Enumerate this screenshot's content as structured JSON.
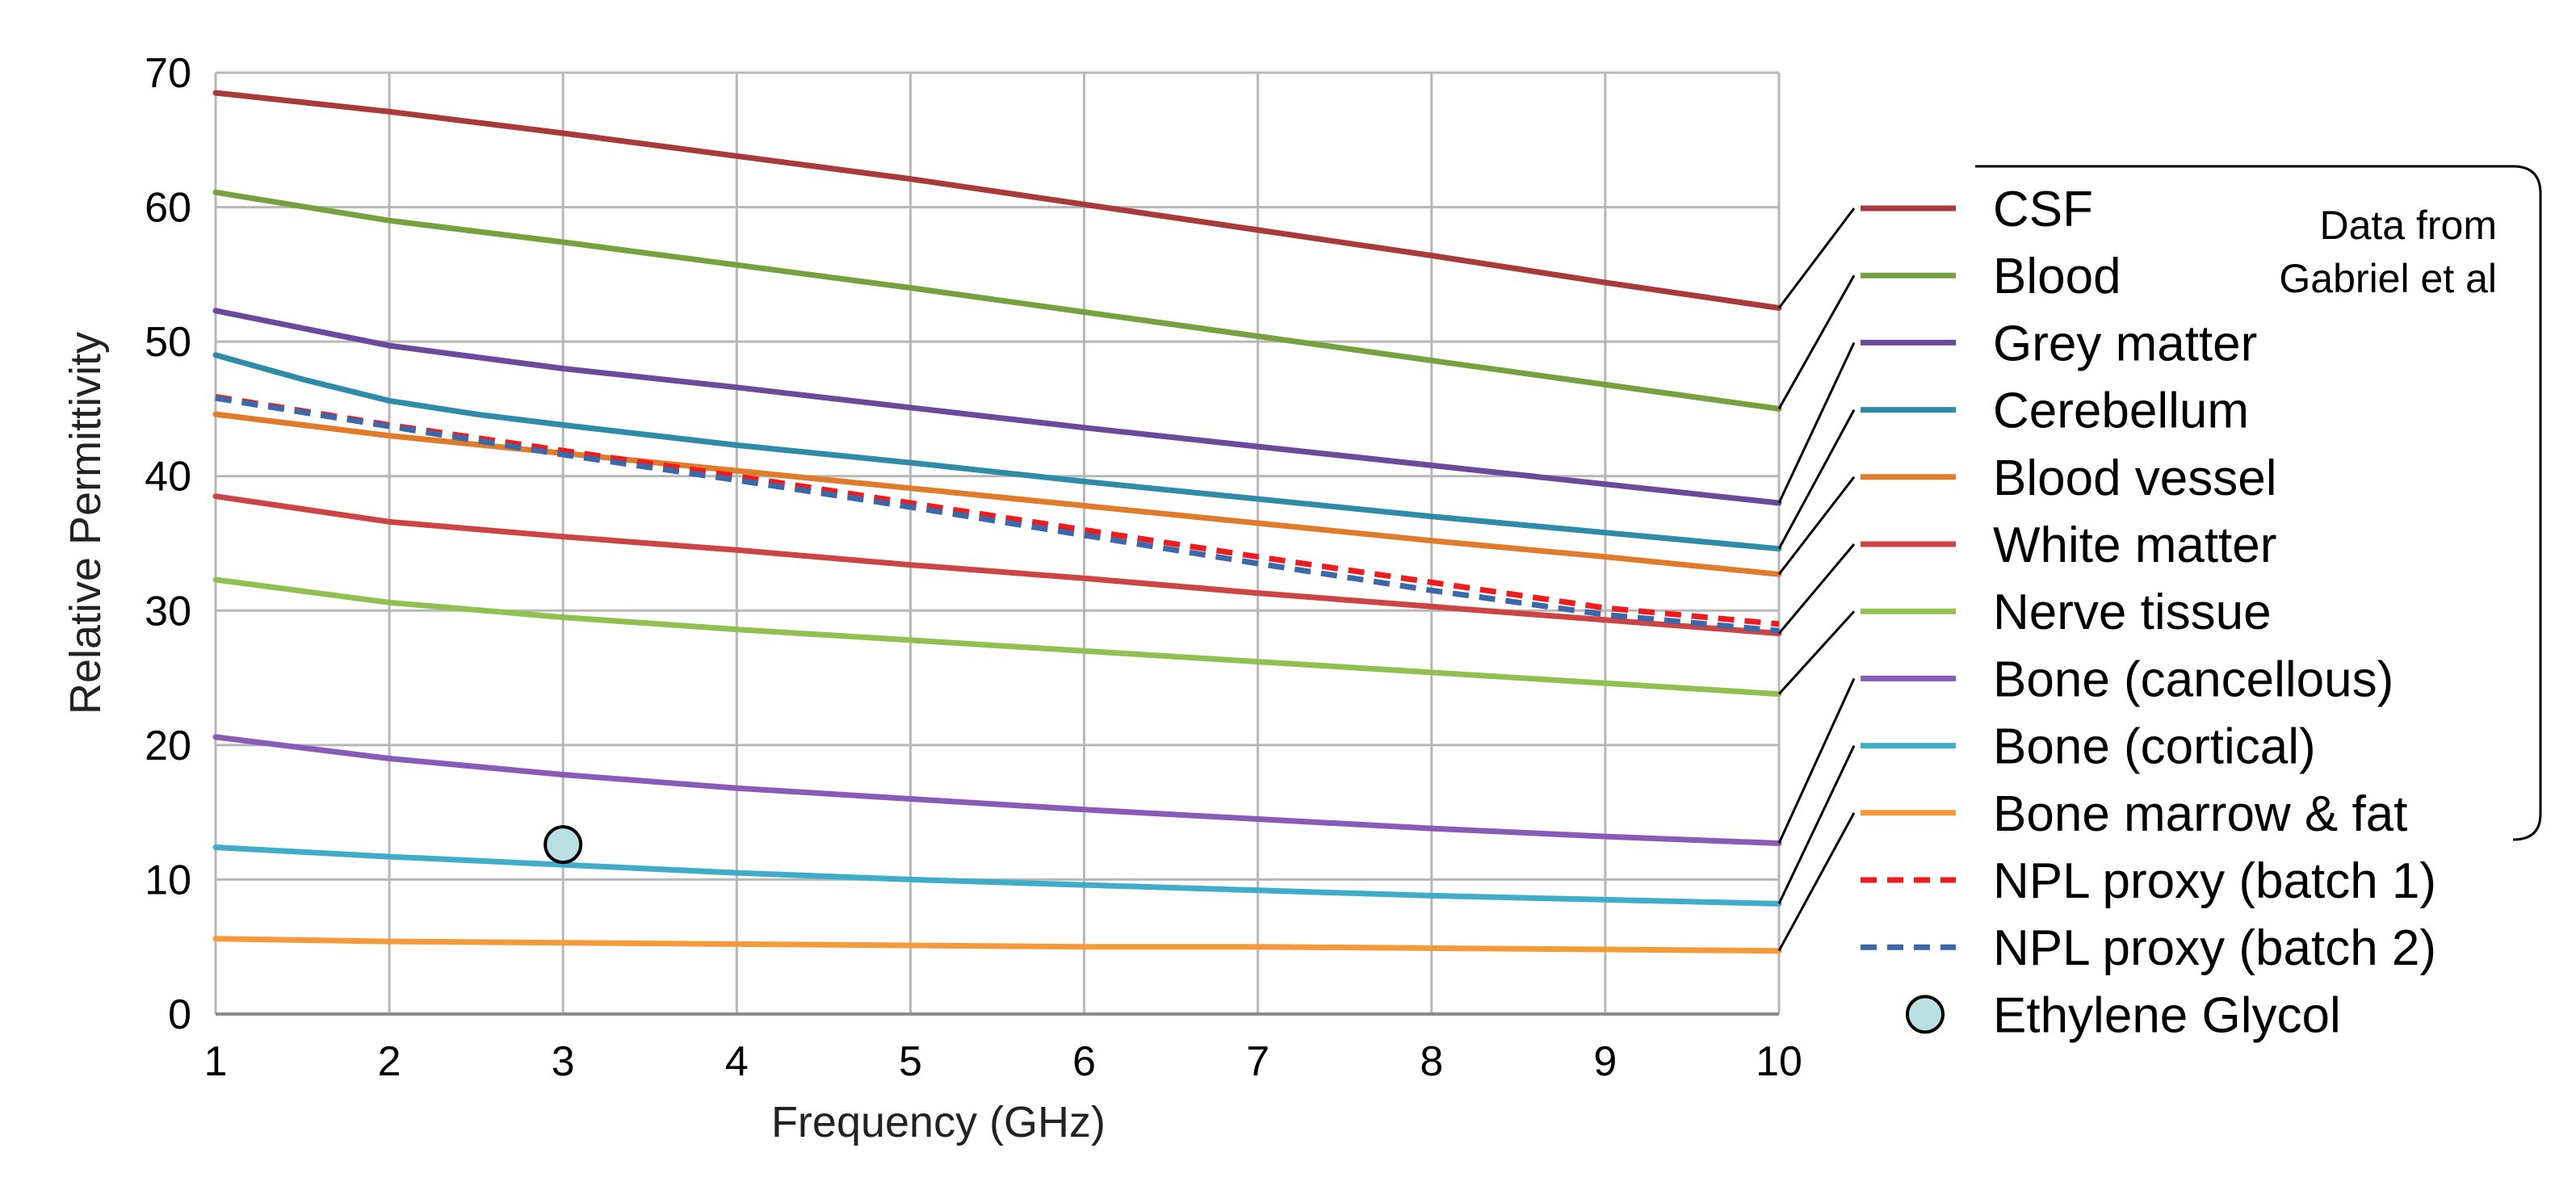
{
  "chart_data": {
    "type": "line",
    "title": "",
    "xlabel": "Frequency (GHz)",
    "ylabel": "Relative Permittivity",
    "xlim": [
      1,
      10
    ],
    "ylim": [
      0,
      70
    ],
    "xticks": [
      1,
      2,
      3,
      4,
      5,
      6,
      7,
      8,
      9,
      10
    ],
    "yticks": [
      0,
      10,
      20,
      30,
      40,
      50,
      60,
      70
    ],
    "grid": true,
    "legend_position": "right",
    "annotation": "Data from Gabriel et al",
    "series": [
      {
        "name": "CSF",
        "color": "#a83a3a",
        "style": "solid",
        "x": [
          1,
          2,
          3,
          4,
          5,
          6,
          7,
          8,
          9,
          10
        ],
        "y": [
          68.5,
          67.1,
          65.5,
          63.8,
          62.1,
          60.2,
          58.3,
          56.4,
          54.4,
          52.5
        ]
      },
      {
        "name": "Blood",
        "color": "#77a13e",
        "style": "solid",
        "x": [
          1,
          2,
          3,
          4,
          5,
          6,
          7,
          8,
          9,
          10
        ],
        "y": [
          61.1,
          59.0,
          57.4,
          55.7,
          54.0,
          52.2,
          50.4,
          48.6,
          46.8,
          45.0
        ]
      },
      {
        "name": "Grey matter",
        "color": "#6b4a9c",
        "style": "solid",
        "x": [
          1,
          2,
          3,
          4,
          5,
          6,
          7,
          8,
          9,
          10
        ],
        "y": [
          52.3,
          49.7,
          48.0,
          46.6,
          45.1,
          43.6,
          42.2,
          40.8,
          39.4,
          38.0
        ]
      },
      {
        "name": "Cerebellum",
        "color": "#2f8ca8",
        "style": "solid",
        "x": [
          1,
          1.5,
          2,
          2.5,
          3,
          4,
          5,
          6,
          7,
          8,
          9,
          10
        ],
        "y": [
          49.0,
          47.2,
          45.6,
          44.6,
          43.8,
          42.3,
          41.0,
          39.6,
          38.3,
          37.0,
          35.8,
          34.6
        ]
      },
      {
        "name": "Blood vessel",
        "color": "#e07b2c",
        "style": "solid",
        "x": [
          1,
          2,
          3,
          4,
          5,
          6,
          7,
          8,
          9,
          10
        ],
        "y": [
          44.6,
          43.0,
          41.7,
          40.4,
          39.1,
          37.8,
          36.5,
          35.2,
          34.0,
          32.7
        ]
      },
      {
        "name": "White matter",
        "color": "#cc4444",
        "style": "solid",
        "x": [
          1,
          2,
          3,
          4,
          5,
          6,
          7,
          8,
          9,
          10
        ],
        "y": [
          38.5,
          36.6,
          35.5,
          34.5,
          33.4,
          32.4,
          31.3,
          30.3,
          29.3,
          28.3
        ]
      },
      {
        "name": "Nerve tissue",
        "color": "#92c050",
        "style": "solid",
        "x": [
          1,
          2,
          3,
          4,
          5,
          6,
          7,
          8,
          9,
          10
        ],
        "y": [
          32.3,
          30.6,
          29.5,
          28.6,
          27.8,
          27.0,
          26.2,
          25.4,
          24.6,
          23.8
        ]
      },
      {
        "name": "Bone (cancellous)",
        "color": "#8a5ab8",
        "style": "solid",
        "x": [
          1,
          2,
          3,
          4,
          5,
          6,
          7,
          8,
          9,
          10
        ],
        "y": [
          20.6,
          19.0,
          17.8,
          16.8,
          16.0,
          15.2,
          14.5,
          13.8,
          13.2,
          12.7
        ]
      },
      {
        "name": "Bone (cortical)",
        "color": "#3fadc9",
        "style": "solid",
        "x": [
          1,
          2,
          3,
          4,
          5,
          6,
          7,
          8,
          9,
          10
        ],
        "y": [
          12.4,
          11.7,
          11.1,
          10.5,
          10.0,
          9.6,
          9.2,
          8.8,
          8.5,
          8.2
        ]
      },
      {
        "name": "Bone marrow & fat",
        "color": "#f59a3b",
        "style": "solid",
        "x": [
          1,
          2,
          3,
          4,
          5,
          6,
          7,
          8,
          9,
          10
        ],
        "y": [
          5.6,
          5.4,
          5.3,
          5.2,
          5.1,
          5.0,
          5.0,
          4.9,
          4.8,
          4.7
        ]
      },
      {
        "name": "NPL proxy (batch 1)",
        "color": "#ee1c1c",
        "style": "dashed",
        "x": [
          1,
          2,
          3,
          4,
          5,
          6,
          7,
          8,
          9,
          10
        ],
        "y": [
          45.9,
          43.8,
          41.9,
          40.0,
          38.0,
          36.0,
          34.0,
          32.1,
          30.2,
          29.0
        ]
      },
      {
        "name": "NPL proxy (batch 2)",
        "color": "#3b68a8",
        "style": "dashed",
        "x": [
          1,
          2,
          3,
          4,
          5,
          6,
          7,
          8,
          9,
          10
        ],
        "y": [
          45.8,
          43.7,
          41.6,
          39.7,
          37.7,
          35.6,
          33.5,
          31.5,
          29.7,
          28.5
        ]
      },
      {
        "name": "Ethylene Glycol",
        "color": "#b9e0e2",
        "style": "marker",
        "x": [
          3
        ],
        "y": [
          12.6
        ]
      }
    ]
  }
}
